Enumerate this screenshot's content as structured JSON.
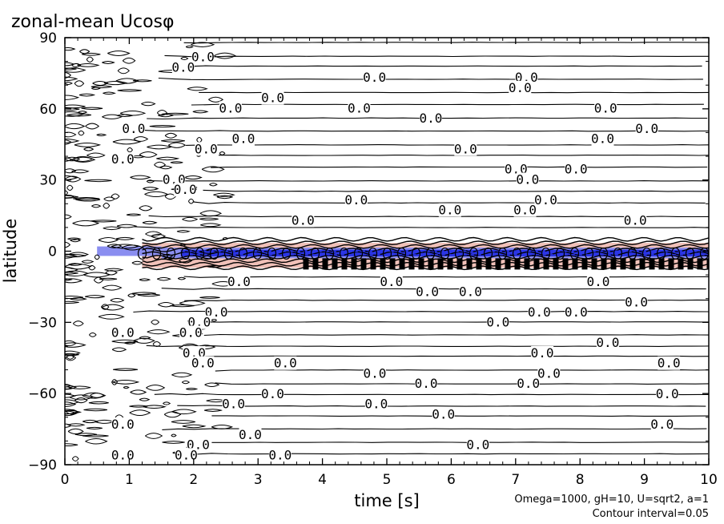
{
  "chart_data": {
    "type": "contour",
    "title": "zonal-mean Ucosφ",
    "xlabel": "time [s]",
    "ylabel": "latitude",
    "xlim": [
      0,
      10
    ],
    "ylim": [
      -90,
      90
    ],
    "x_ticks": [
      0,
      1,
      2,
      3,
      4,
      5,
      6,
      7,
      8,
      9,
      10
    ],
    "y_ticks": [
      -90,
      -60,
      -30,
      0,
      30,
      60,
      90
    ],
    "x_tick_labels": [
      "0",
      "1",
      "2",
      "3",
      "4",
      "5",
      "6",
      "7",
      "8",
      "9",
      "10"
    ],
    "y_tick_labels": [
      "−90",
      "−60",
      "−30",
      "0",
      "30",
      "60",
      "90"
    ],
    "contour_label": "0.0",
    "contour_interval": 0.05,
    "annotation_line1": "Omega=1000, gH=10, U=sqrt2, a=1",
    "annotation_line2": "Contour interval=0.05",
    "colors": {
      "negative_shading": "#8a8ef0",
      "negative_core": "#2b35e6",
      "positive_shading": "#f0c0b8",
      "contour": "#000000",
      "background": "#ffffff"
    }
  }
}
